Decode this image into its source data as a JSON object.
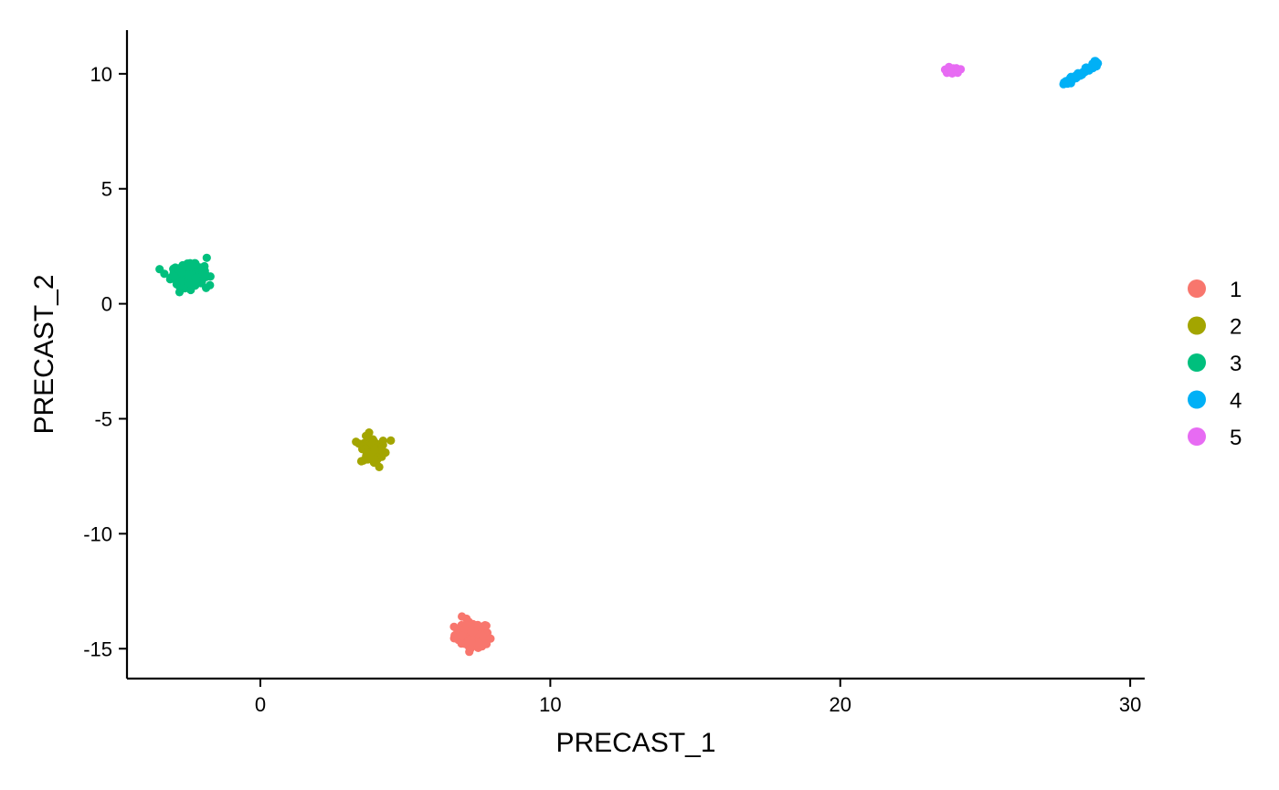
{
  "chart_data": {
    "type": "scatter",
    "xlabel": "PRECAST_1",
    "ylabel": "PRECAST_2",
    "xlim": [
      -4.6,
      30.5
    ],
    "ylim": [
      -16.3,
      11.9
    ],
    "xticks": [
      0,
      10,
      20,
      30
    ],
    "yticks": [
      -15,
      -10,
      -5,
      0,
      5,
      10
    ],
    "grid": false,
    "legend_position": "right",
    "series": [
      {
        "name": "1",
        "color": "#F8766D",
        "center": [
          7.3,
          -14.4
        ],
        "spread": [
          0.3,
          0.28
        ],
        "n": 85,
        "extra_points": [
          [
            6.95,
            -13.6
          ],
          [
            7.8,
            -14.8
          ],
          [
            7.25,
            -15.0
          ],
          [
            6.7,
            -14.5
          ]
        ]
      },
      {
        "name": "2",
        "color": "#A3A500",
        "center": [
          3.9,
          -6.4
        ],
        "spread": [
          0.22,
          0.3
        ],
        "n": 65,
        "extra_points": [
          [
            4.5,
            -5.95
          ],
          [
            3.3,
            -6.0
          ],
          [
            4.1,
            -7.1
          ],
          [
            3.75,
            -5.6
          ]
        ]
      },
      {
        "name": "3",
        "color": "#00BF7D",
        "center": [
          -2.5,
          1.25
        ],
        "spread": [
          0.28,
          0.22
        ],
        "n": 170,
        "extra_points": [
          [
            -1.85,
            2.0
          ],
          [
            -3.0,
            1.2
          ],
          [
            -1.9,
            1.3
          ],
          [
            -2.4,
            0.6
          ]
        ]
      },
      {
        "name": "4",
        "color": "#00B0F6",
        "line": [
          [
            27.75,
            9.6
          ],
          [
            28.85,
            10.45
          ]
        ],
        "jitter": 0.07,
        "n": 55,
        "extra_points": [
          [
            28.85,
            10.5
          ],
          [
            27.7,
            9.55
          ]
        ]
      },
      {
        "name": "5",
        "color": "#E76BF3",
        "center": [
          23.9,
          10.15
        ],
        "spread": [
          0.1,
          0.07
        ],
        "n": 22,
        "extra_points": [
          [
            23.75,
            10.3
          ],
          [
            24.05,
            10.05
          ]
        ]
      }
    ]
  }
}
